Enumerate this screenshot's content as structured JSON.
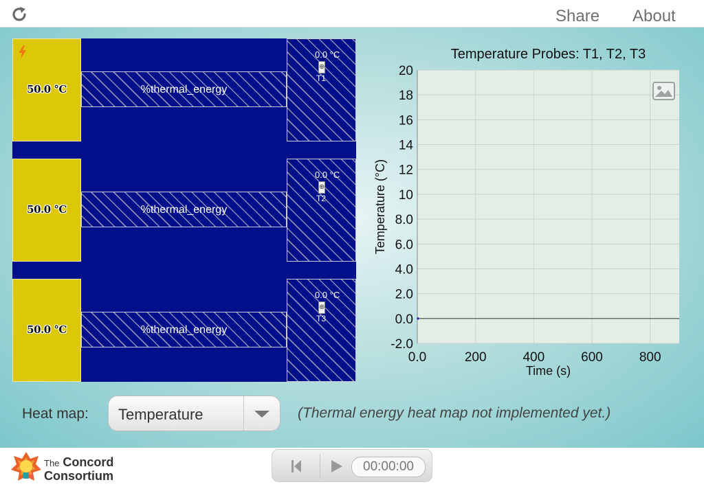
{
  "topbar": {
    "share_label": "Share",
    "about_label": "About"
  },
  "simulation": {
    "rows": [
      {
        "heater_temp": "50.0 °C",
        "rod_label": "%thermal_energy",
        "probe_temp": "0.0 °C",
        "probe_name": "T1"
      },
      {
        "heater_temp": "50.0 °C",
        "rod_label": "%thermal_energy",
        "probe_temp": "0.0 °C",
        "probe_name": "T2"
      },
      {
        "heater_temp": "50.0 °C",
        "rod_label": "%thermal_energy",
        "probe_temp": "0.0 °C",
        "probe_name": "T3"
      }
    ],
    "colors": {
      "background": "#00108a",
      "heater": "#dcc808",
      "hatch": "#8b8bb8"
    }
  },
  "chart_data": {
    "type": "line",
    "title": "Temperature Probes: T1, T2, T3",
    "xlabel": "Time (s)",
    "ylabel": "Temperature (°C)",
    "xlim": [
      0,
      900
    ],
    "ylim": [
      -2,
      20
    ],
    "xticks": [
      {
        "v": 0,
        "label": "0.0"
      },
      {
        "v": 200,
        "label": "200"
      },
      {
        "v": 400,
        "label": "400"
      },
      {
        "v": 600,
        "label": "600"
      },
      {
        "v": 800,
        "label": "800"
      }
    ],
    "yticks": [
      {
        "v": 20,
        "label": "20"
      },
      {
        "v": 18,
        "label": "18"
      },
      {
        "v": 16,
        "label": "16"
      },
      {
        "v": 14,
        "label": "14"
      },
      {
        "v": 12,
        "label": "12"
      },
      {
        "v": 10,
        "label": "10"
      },
      {
        "v": 8,
        "label": "8.0"
      },
      {
        "v": 6,
        "label": "6.0"
      },
      {
        "v": 4,
        "label": "4.0"
      },
      {
        "v": 2,
        "label": "2.0"
      },
      {
        "v": 0,
        "label": "0.0"
      },
      {
        "v": -2,
        "label": "-2.0"
      }
    ],
    "grid": true,
    "series": [
      {
        "name": "T1",
        "x": [
          0
        ],
        "y": [
          0
        ]
      },
      {
        "name": "T2",
        "x": [
          0
        ],
        "y": [
          0
        ]
      },
      {
        "name": "T3",
        "x": [
          0
        ],
        "y": [
          0
        ]
      }
    ],
    "colors": {
      "plot_bg": "#e4eee6",
      "grid": "#c9d4cc",
      "zero_line": "#333333"
    }
  },
  "controls": {
    "heatmap_label": "Heat map:",
    "heatmap_selected": "Temperature",
    "note": "(Thermal energy heat map not implemented yet.)"
  },
  "footer": {
    "logo_the": "The",
    "logo_line1": "Concord",
    "logo_line2": "Consortium",
    "clock": "00:00:00"
  }
}
